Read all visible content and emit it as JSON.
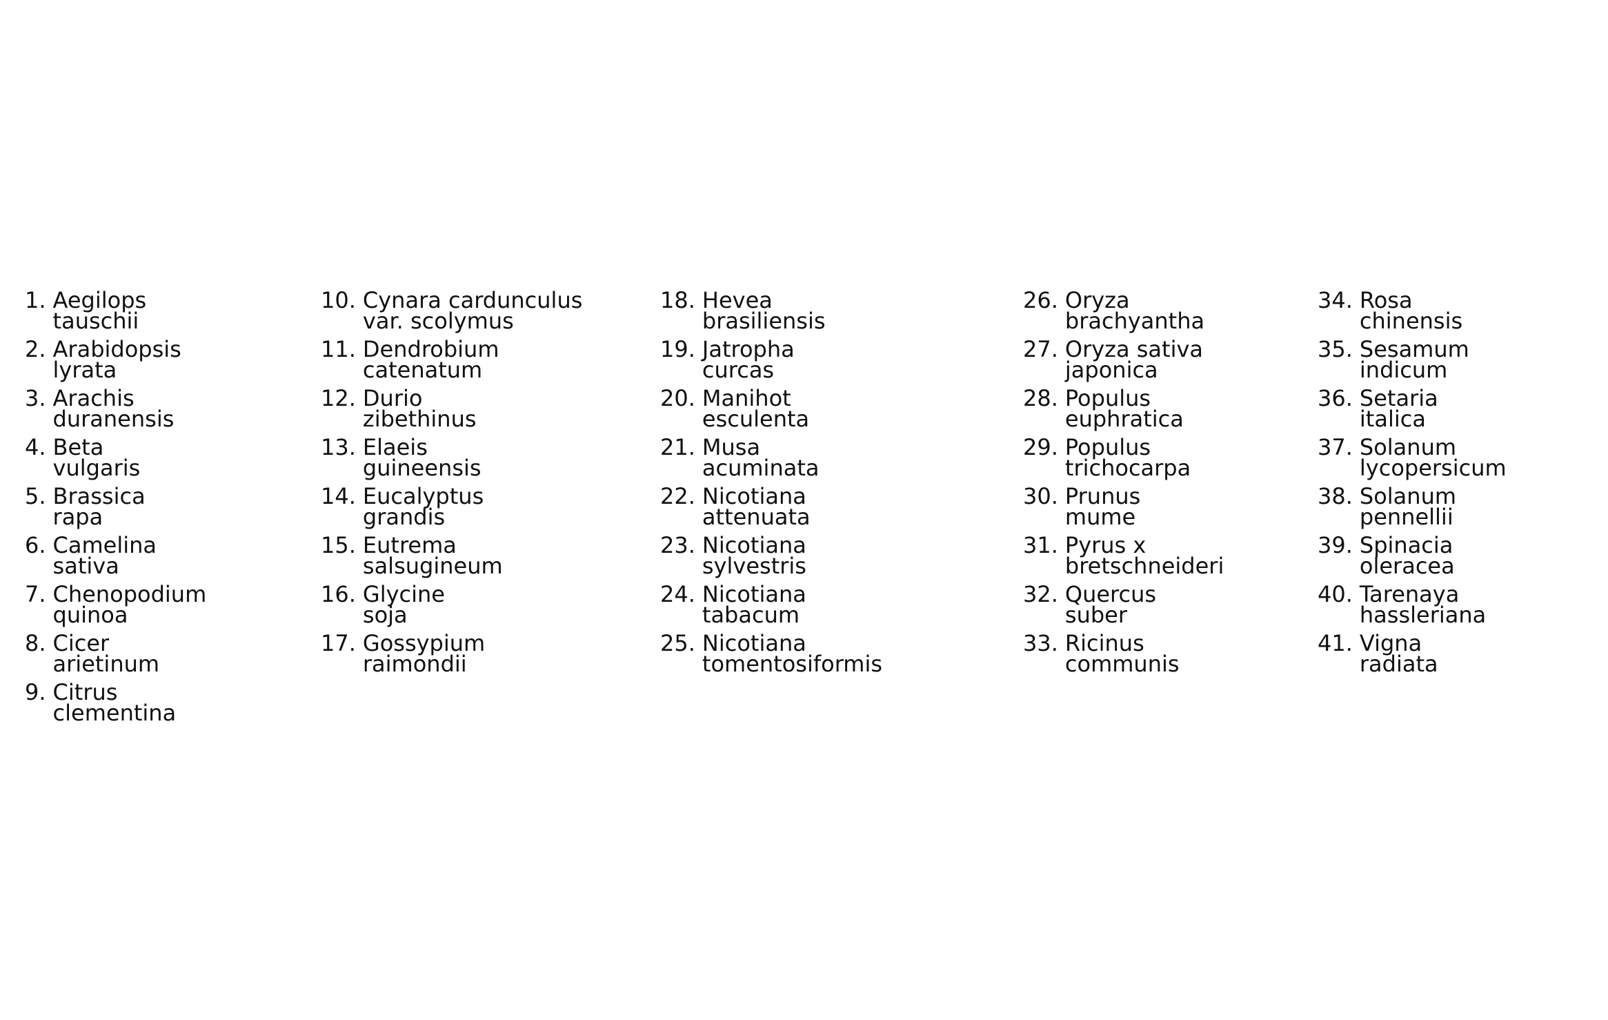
{
  "species": {
    "columns": [
      [
        {
          "num": "1.",
          "name": "Aegilops tauschii"
        },
        {
          "num": "2.",
          "name": "Arabidopsis lyrata"
        },
        {
          "num": "3.",
          "name": "Arachis duranensis"
        },
        {
          "num": "4.",
          "name": "Beta vulgaris"
        },
        {
          "num": "5.",
          "name": "Brassica rapa"
        },
        {
          "num": "6.",
          "name": "Camelina sativa"
        },
        {
          "num": "7.",
          "name": "Chenopodium quinoa"
        },
        {
          "num": "8.",
          "name": "Cicer arietinum"
        },
        {
          "num": "9.",
          "name": "Citrus clementina"
        }
      ],
      [
        {
          "num": "10.",
          "name": "Cynara cardunculus var. scolymus"
        },
        {
          "num": "11.",
          "name": "Dendrobium catenatum"
        },
        {
          "num": "12.",
          "name": "Durio zibethinus"
        },
        {
          "num": "13.",
          "name": "Elaeis guineensis"
        },
        {
          "num": "14.",
          "name": "Eucalyptus grandis"
        },
        {
          "num": "15.",
          "name": "Eutrema salsugineum"
        },
        {
          "num": "16.",
          "name": "Glycine soja"
        },
        {
          "num": "17.",
          "name": "Gossypium raimondii"
        }
      ],
      [
        {
          "num": "18.",
          "name": "Hevea brasiliensis"
        },
        {
          "num": "19.",
          "name": "Jatropha curcas"
        },
        {
          "num": "20.",
          "name": "Manihot esculenta"
        },
        {
          "num": "21.",
          "name": "Musa acuminata"
        },
        {
          "num": "22.",
          "name": "Nicotiana attenuata"
        },
        {
          "num": "23.",
          "name": "Nicotiana sylvestris"
        },
        {
          "num": "24.",
          "name": "Nicotiana tabacum"
        },
        {
          "num": "25.",
          "name": "Nicotiana tomentosiformis"
        }
      ],
      [
        {
          "num": "26.",
          "name": "Oryza brachyantha"
        },
        {
          "num": "27.",
          "name": "Oryza sativa japonica"
        },
        {
          "num": "28.",
          "name": "Populus euphratica"
        },
        {
          "num": "29.",
          "name": "Populus trichocarpa"
        },
        {
          "num": "30.",
          "name": "Prunus mume"
        },
        {
          "num": "31.",
          "name": "Pyrus x bretschneideri"
        },
        {
          "num": "32.",
          "name": "Quercus suber"
        },
        {
          "num": "33.",
          "name": "Ricinus communis"
        }
      ],
      [
        {
          "num": "34.",
          "name": "Rosa chinensis"
        },
        {
          "num": "35.",
          "name": "Sesamum indicum"
        },
        {
          "num": "36.",
          "name": "Setaria italica"
        },
        {
          "num": "37.",
          "name": "Solanum lycopersicum"
        },
        {
          "num": "38.",
          "name": "Solanum pennellii"
        },
        {
          "num": "39.",
          "name": "Spinacia oleracea"
        },
        {
          "num": "40.",
          "name": "Tarenaya hassleriana"
        },
        {
          "num": "41.",
          "name": "Vigna radiata"
        }
      ]
    ]
  }
}
